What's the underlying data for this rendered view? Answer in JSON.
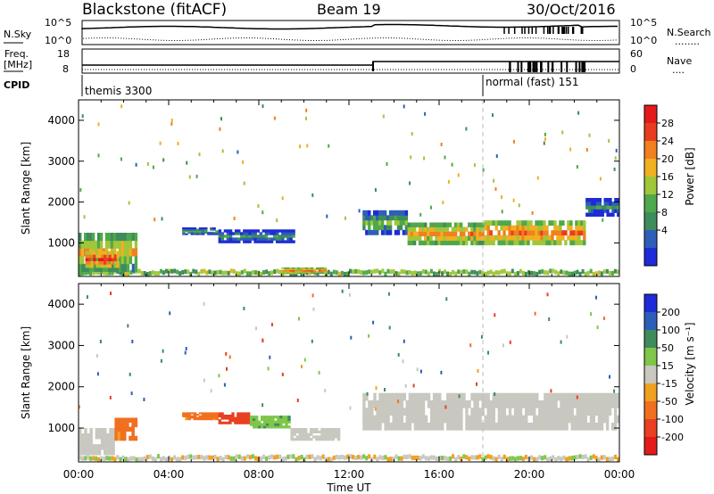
{
  "header": {
    "title": "Blackstone (fitACF)",
    "beam": "Beam 19",
    "date": "30/Oct/2016"
  },
  "noise_panel": {
    "left_label": "N.Sky",
    "right_label": "N.Search",
    "right_legend": "........",
    "left_ticks": [
      "10^5",
      "10^0"
    ],
    "right_ticks": [
      "10^5",
      "10^0"
    ]
  },
  "freq_panel": {
    "left_label": "Freq.",
    "left_unit": "[MHz]",
    "right_label": "Nave",
    "right_legend": "....",
    "left_ticks": [
      "18",
      "8"
    ],
    "right_ticks": [
      "60",
      "0"
    ]
  },
  "cpid_panel": {
    "label": "CPID",
    "programs": [
      {
        "name": "themis 3300",
        "start": "00:00",
        "end": "18:00"
      },
      {
        "name": "normal (fast) 151",
        "start": "18:00",
        "end": "00:00"
      }
    ]
  },
  "colors": {
    "power": [
      "#1f2bd6",
      "#2e5eb8",
      "#3e8c5c",
      "#4fa84b",
      "#a0c63a",
      "#f0b020",
      "#f08020",
      "#e83c20",
      "#e41a1a"
    ],
    "velocity": [
      "#1f2bd6",
      "#2e5eb8",
      "#3e8c5c",
      "#7fc64b",
      "#c8c8c0",
      "#f0a020",
      "#f07020",
      "#e84020",
      "#e41a1a"
    ]
  },
  "chart_data": [
    {
      "type": "heatmap",
      "title": "Power",
      "ylabel": "Slant Range [km]",
      "xlabel": "",
      "ylim": [
        180,
        4500
      ],
      "yticks": [
        "1000",
        "2000",
        "3000",
        "4000"
      ],
      "colorbar": {
        "label": "Power [dB]",
        "ticks": [
          "4",
          "8",
          "12",
          "16",
          "20",
          "24",
          "28"
        ],
        "range": [
          0,
          32
        ]
      },
      "bands": [
        {
          "t0": 0.0,
          "t1": 2.6,
          "r0": 300,
          "r1": 1250,
          "value": 20
        },
        {
          "t0": 0.3,
          "t1": 1.8,
          "r0": 400,
          "r1": 800,
          "value": 28
        },
        {
          "t0": 4.6,
          "t1": 6.2,
          "r0": 1200,
          "r1": 1380,
          "value": 12
        },
        {
          "t0": 6.2,
          "t1": 9.6,
          "r0": 1000,
          "r1": 1330,
          "value": 10
        },
        {
          "t0": 9.0,
          "t1": 11.0,
          "r0": 250,
          "r1": 400,
          "value": 24
        },
        {
          "t0": 12.6,
          "t1": 14.6,
          "r0": 1200,
          "r1": 1800,
          "value": 14
        },
        {
          "t0": 14.6,
          "t1": 18.0,
          "r0": 950,
          "r1": 1500,
          "value": 22
        },
        {
          "t0": 18.0,
          "t1": 22.5,
          "r0": 950,
          "r1": 1550,
          "value": 24
        },
        {
          "t0": 22.5,
          "t1": 24.0,
          "r0": 1650,
          "r1": 2100,
          "value": 10
        }
      ]
    },
    {
      "type": "heatmap",
      "title": "Velocity",
      "ylabel": "Slant Range [km]",
      "xlabel": "Time UT",
      "ylim": [
        180,
        4500
      ],
      "yticks": [
        "1000",
        "2000",
        "3000",
        "4000"
      ],
      "xticks": [
        "00:00",
        "04:00",
        "08:00",
        "12:00",
        "16:00",
        "20:00",
        "00:00"
      ],
      "colorbar": {
        "label": "Velocity [m s⁻¹]",
        "ticks": [
          "200",
          "100",
          "50",
          "15",
          "-15",
          "-50",
          "-100",
          "-200"
        ]
      },
      "bands": [
        {
          "t0": 0.0,
          "t1": 1.6,
          "r0": 350,
          "r1": 1000,
          "value": 0
        },
        {
          "t0": 1.6,
          "t1": 2.6,
          "r0": 700,
          "r1": 1250,
          "value": -60
        },
        {
          "t0": 4.6,
          "t1": 6.2,
          "r0": 1200,
          "r1": 1380,
          "value": -60
        },
        {
          "t0": 6.2,
          "t1": 7.6,
          "r0": 1100,
          "r1": 1380,
          "value": -130
        },
        {
          "t0": 7.6,
          "t1": 9.4,
          "r0": 1000,
          "r1": 1300,
          "value": 40
        },
        {
          "t0": 9.4,
          "t1": 11.6,
          "r0": 700,
          "r1": 1000,
          "value": 0
        },
        {
          "t0": 12.6,
          "t1": 24.0,
          "r0": 950,
          "r1": 1850,
          "value": 0
        }
      ],
      "cpid_change_time": "18:00"
    }
  ]
}
